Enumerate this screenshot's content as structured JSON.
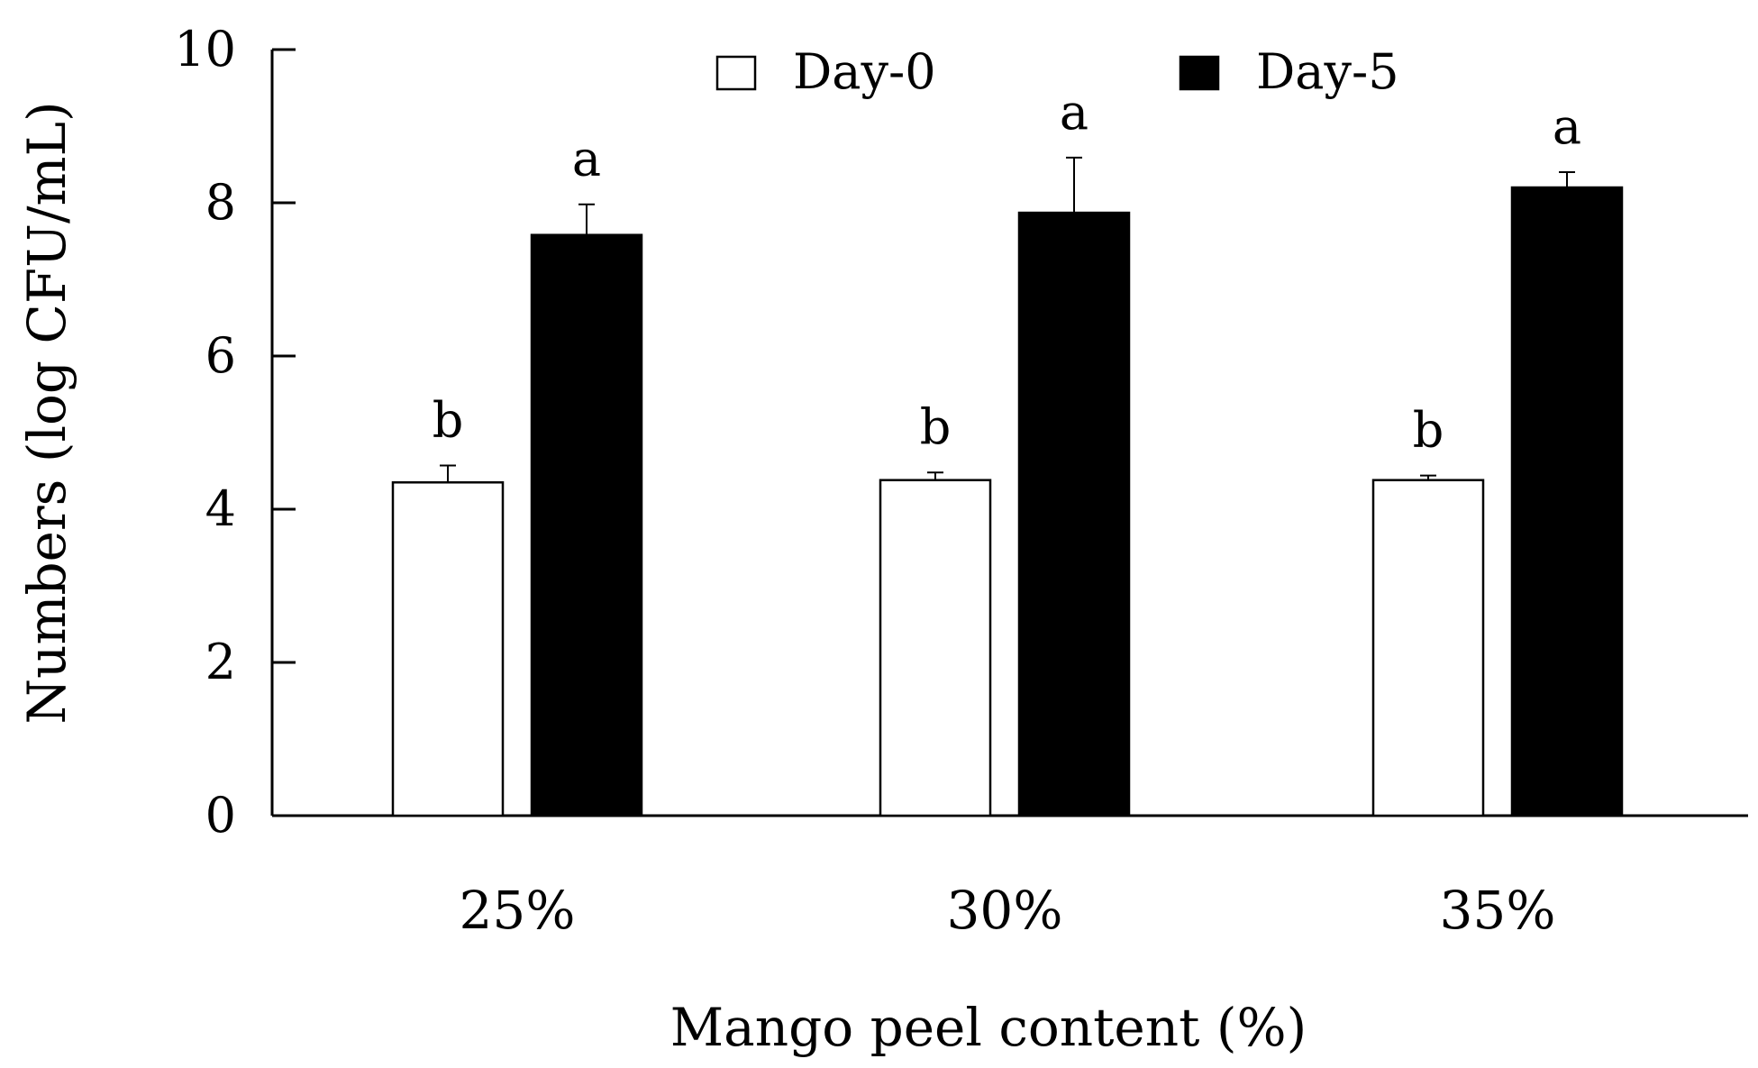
{
  "chart_data": {
    "type": "bar",
    "title": "",
    "xlabel": "Mango peel content (%)",
    "ylabel": "Numbers (log CFU/mL)",
    "ylim": [
      0,
      10
    ],
    "yticks": [
      0,
      2,
      4,
      6,
      8,
      10
    ],
    "ytick_labels": [
      "0",
      "2",
      "4",
      "6",
      "8",
      "10"
    ],
    "categories": [
      "25%",
      "30%",
      "35%"
    ],
    "legend_position": "top-center",
    "series": [
      {
        "name": "Day-0",
        "fill": "#ffffff",
        "stroke": "#000000",
        "values": [
          4.35,
          4.38,
          4.38
        ],
        "errors": [
          0.22,
          0.1,
          0.06
        ],
        "labels": [
          "b",
          "b",
          "b"
        ]
      },
      {
        "name": "Day-5",
        "fill": "#000000",
        "stroke": "#000000",
        "values": [
          7.58,
          7.87,
          8.2
        ],
        "errors": [
          0.4,
          0.72,
          0.2
        ],
        "labels": [
          "a",
          "a",
          "a"
        ]
      }
    ]
  }
}
